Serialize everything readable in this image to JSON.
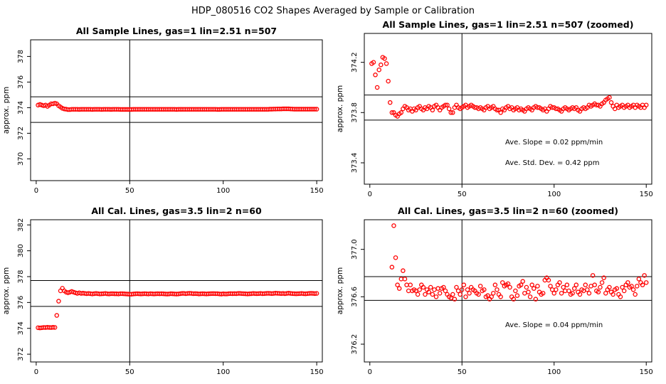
{
  "figure_title": "HDP_080516  CO2 Shapes Averaged by Sample or Calibration",
  "chart_data": [
    {
      "type": "scatter",
      "title": "All Sample Lines, gas=1 lin=2.51 n=507",
      "ylabel": "approx. ppm",
      "xlim": [
        -3,
        153
      ],
      "ylim": [
        368.3,
        379.3
      ],
      "xticks": [
        0,
        50,
        100,
        150
      ],
      "xtick_labels": [
        "0",
        "50",
        "100",
        "150"
      ],
      "yticks": [
        370,
        372,
        374,
        376,
        378
      ],
      "ytick_labels": [
        "370",
        "372",
        "374",
        "376",
        "378"
      ],
      "hlines": [
        374.85,
        372.85
      ],
      "vline": 50,
      "marker_color": "#ff0000",
      "grid": false,
      "x_start": 1,
      "values": [
        374.2,
        374.25,
        374.2,
        374.15,
        374.2,
        374.1,
        374.2,
        374.3,
        374.3,
        374.35,
        374.3,
        374.15,
        374.05,
        373.95,
        373.9,
        373.88,
        373.85,
        373.85,
        373.87,
        373.87,
        373.87,
        373.87,
        373.86,
        373.87,
        373.87,
        373.87,
        373.87,
        373.87,
        373.87,
        373.86,
        373.87,
        373.87,
        373.87,
        373.87,
        373.86,
        373.87,
        373.87,
        373.87,
        373.87,
        373.86,
        373.87,
        373.87,
        373.87,
        373.87,
        373.86,
        373.86,
        373.86,
        373.86,
        373.86,
        373.86,
        373.86,
        373.87,
        373.87,
        373.87,
        373.87,
        373.87,
        373.87,
        373.87,
        373.87,
        373.87,
        373.87,
        373.87,
        373.87,
        373.87,
        373.87,
        373.87,
        373.87,
        373.87,
        373.87,
        373.87,
        373.87,
        373.87,
        373.87,
        373.87,
        373.86,
        373.87,
        373.87,
        373.87,
        373.87,
        373.87,
        373.87,
        373.87,
        373.87,
        373.87,
        373.87,
        373.87,
        373.87,
        373.87,
        373.87,
        373.87,
        373.87,
        373.87,
        373.87,
        373.87,
        373.87,
        373.87,
        373.86,
        373.86,
        373.87,
        373.87,
        373.87,
        373.87,
        373.87,
        373.87,
        373.87,
        373.87,
        373.87,
        373.87,
        373.87,
        373.87,
        373.87,
        373.87,
        373.87,
        373.87,
        373.87,
        373.87,
        373.87,
        373.87,
        373.87,
        373.87,
        373.87,
        373.87,
        373.87,
        373.87,
        373.88,
        373.88,
        373.89,
        373.89,
        373.9,
        373.9,
        373.9,
        373.91,
        373.91,
        373.91,
        373.91,
        373.9,
        373.89,
        373.88,
        373.88,
        373.88,
        373.88,
        373.88,
        373.88,
        373.88,
        373.88,
        373.88,
        373.88,
        373.88,
        373.88,
        373.88
      ]
    },
    {
      "type": "scatter",
      "title": "All Sample Lines, gas=1 lin=2.51 n=507 (zoomed)",
      "ylabel": "approx. ppm",
      "xlim": [
        -3,
        153
      ],
      "ylim": [
        373.23,
        374.43
      ],
      "xticks": [
        0,
        50,
        100,
        150
      ],
      "xtick_labels": [
        "0",
        "50",
        "100",
        "150"
      ],
      "yticks": [
        373.4,
        373.8,
        374.2
      ],
      "ytick_labels": [
        "373.4",
        "373.8",
        "374.2"
      ],
      "hlines": [
        373.94,
        373.74
      ],
      "vline": 50,
      "marker_color": "#ff0000",
      "grid": false,
      "annotations": [
        "Ave. Slope =  0.02  ppm/min",
        "Ave. Std. Dev. =  0.42  ppm"
      ],
      "x_start": 1,
      "values": [
        374.19,
        374.2,
        374.1,
        374.0,
        374.14,
        374.18,
        374.24,
        374.23,
        374.19,
        374.05,
        373.88,
        373.8,
        373.8,
        373.78,
        373.77,
        373.79,
        373.8,
        373.83,
        373.85,
        373.84,
        373.82,
        373.83,
        373.81,
        373.83,
        373.82,
        373.84,
        373.85,
        373.83,
        373.82,
        373.84,
        373.83,
        373.85,
        373.84,
        373.82,
        373.85,
        373.86,
        373.84,
        373.82,
        373.84,
        373.85,
        373.86,
        373.86,
        373.83,
        373.8,
        373.8,
        373.84,
        373.86,
        373.84,
        373.83,
        373.84,
        373.85,
        373.86,
        373.84,
        373.85,
        373.86,
        373.85,
        373.84,
        373.84,
        373.83,
        373.84,
        373.83,
        373.82,
        373.84,
        373.85,
        373.83,
        373.84,
        373.85,
        373.83,
        373.82,
        373.82,
        373.8,
        373.83,
        373.82,
        373.84,
        373.85,
        373.83,
        373.84,
        373.82,
        373.83,
        373.84,
        373.82,
        373.83,
        373.82,
        373.81,
        373.83,
        373.84,
        373.83,
        373.82,
        373.84,
        373.85,
        373.84,
        373.84,
        373.83,
        373.82,
        373.83,
        373.81,
        373.83,
        373.85,
        373.84,
        373.84,
        373.83,
        373.83,
        373.82,
        373.81,
        373.83,
        373.84,
        373.83,
        373.82,
        373.83,
        373.84,
        373.83,
        373.84,
        373.82,
        373.81,
        373.83,
        373.84,
        373.83,
        373.84,
        373.86,
        373.85,
        373.86,
        373.87,
        373.86,
        373.86,
        373.85,
        373.87,
        373.88,
        373.9,
        373.91,
        373.92,
        373.88,
        373.85,
        373.83,
        373.86,
        373.84,
        373.85,
        373.86,
        373.84,
        373.85,
        373.86,
        373.84,
        373.85,
        373.86,
        373.84,
        373.86,
        373.85,
        373.84,
        373.86,
        373.84,
        373.86
      ]
    },
    {
      "type": "scatter",
      "title": "All Cal. Lines, gas=3.5 lin=2 n=60",
      "ylabel": "approx. ppm",
      "xlim": [
        -3,
        153
      ],
      "ylim": [
        371.4,
        382.4
      ],
      "xticks": [
        0,
        50,
        100,
        150
      ],
      "xtick_labels": [
        "0",
        "50",
        "100",
        "150"
      ],
      "yticks": [
        372,
        374,
        376,
        378,
        380,
        382
      ],
      "ytick_labels": [
        "372",
        "374",
        "376",
        "378",
        "380",
        "382"
      ],
      "hlines": [
        377.7,
        375.7
      ],
      "vline": 50,
      "marker_color": "#ff0000",
      "grid": false,
      "x_start": 1,
      "values": [
        374.05,
        374.03,
        374.05,
        374.07,
        374.06,
        374.08,
        374.07,
        374.06,
        374.08,
        374.07,
        375.0,
        376.1,
        376.9,
        377.1,
        376.9,
        376.8,
        376.75,
        376.8,
        376.85,
        376.8,
        376.75,
        376.7,
        376.75,
        376.7,
        376.72,
        376.7,
        376.68,
        376.7,
        376.68,
        376.66,
        376.68,
        376.7,
        376.68,
        376.66,
        376.67,
        376.68,
        376.7,
        376.67,
        376.66,
        376.68,
        376.68,
        376.67,
        376.67,
        376.66,
        376.68,
        376.68,
        376.67,
        376.66,
        376.65,
        376.64,
        376.64,
        376.66,
        376.67,
        376.68,
        376.67,
        376.66,
        376.67,
        376.68,
        376.67,
        376.66,
        376.68,
        376.67,
        376.66,
        376.67,
        376.68,
        376.67,
        376.68,
        376.67,
        376.66,
        376.65,
        376.66,
        376.68,
        376.67,
        376.66,
        376.65,
        376.66,
        376.68,
        376.7,
        376.7,
        376.68,
        376.7,
        376.71,
        376.7,
        376.68,
        376.69,
        376.68,
        376.66,
        376.67,
        376.68,
        376.67,
        376.66,
        376.67,
        376.68,
        376.69,
        376.69,
        376.68,
        376.68,
        376.66,
        376.65,
        376.67,
        376.66,
        376.66,
        376.68,
        376.69,
        376.68,
        376.69,
        376.68,
        376.7,
        376.7,
        376.69,
        376.68,
        376.67,
        376.66,
        376.67,
        376.68,
        376.7,
        376.69,
        376.68,
        376.69,
        376.7,
        376.68,
        376.69,
        376.7,
        376.71,
        376.7,
        376.69,
        376.7,
        376.72,
        376.71,
        376.7,
        376.69,
        376.7,
        376.68,
        376.7,
        376.72,
        376.7,
        376.69,
        376.68,
        376.67,
        376.68,
        376.69,
        376.7,
        376.68,
        376.67,
        376.69,
        376.7,
        376.71,
        376.7,
        376.69,
        376.7
      ]
    },
    {
      "type": "scatter",
      "title": "All Cal. Lines, gas=3.5 lin=2 n=60 (zoomed)",
      "ylabel": "approx. ppm",
      "xlim": [
        -3,
        153
      ],
      "ylim": [
        376.05,
        377.25
      ],
      "xticks": [
        0,
        50,
        100,
        150
      ],
      "xtick_labels": [
        "0",
        "50",
        "100",
        "150"
      ],
      "yticks": [
        376.2,
        376.6,
        377.0
      ],
      "ytick_labels": [
        "376.2",
        "376.6",
        "377.0"
      ],
      "hlines": [
        376.77,
        376.57
      ],
      "vline": 50,
      "marker_color": "#ff0000",
      "grid": false,
      "annotations": [
        "Ave. Slope =  0.04  ppm/min"
      ],
      "x_start": 12,
      "values": [
        376.85,
        377.2,
        376.93,
        376.7,
        376.67,
        376.75,
        376.82,
        376.75,
        376.7,
        376.65,
        376.7,
        376.65,
        376.66,
        376.65,
        376.62,
        376.66,
        376.7,
        376.68,
        376.62,
        376.66,
        376.64,
        376.68,
        376.62,
        376.66,
        376.6,
        376.67,
        376.63,
        376.67,
        376.68,
        376.65,
        376.62,
        376.6,
        376.59,
        376.62,
        376.58,
        376.68,
        376.65,
        376.62,
        376.66,
        376.7,
        376.6,
        376.66,
        376.63,
        376.68,
        376.66,
        376.65,
        376.63,
        376.62,
        376.69,
        376.65,
        376.66,
        376.6,
        376.61,
        376.58,
        376.6,
        376.63,
        376.7,
        376.66,
        376.62,
        376.6,
        376.72,
        376.69,
        376.7,
        376.71,
        376.68,
        376.6,
        376.58,
        376.65,
        376.61,
        376.69,
        376.7,
        376.73,
        376.63,
        376.68,
        376.64,
        376.6,
        376.7,
        376.67,
        376.58,
        376.69,
        376.64,
        376.62,
        376.63,
        376.74,
        376.76,
        376.74,
        376.69,
        376.66,
        376.63,
        376.66,
        376.7,
        376.72,
        376.63,
        376.68,
        376.65,
        376.7,
        376.65,
        376.62,
        376.63,
        376.67,
        376.7,
        376.64,
        376.62,
        376.66,
        376.65,
        376.7,
        376.66,
        376.63,
        376.69,
        376.78,
        376.7,
        376.65,
        376.64,
        376.68,
        376.72,
        376.76,
        376.63,
        376.66,
        376.68,
        376.64,
        376.62,
        376.66,
        376.67,
        376.62,
        376.6,
        376.68,
        376.65,
        376.7,
        376.72,
        376.68,
        376.69,
        376.66,
        376.62,
        376.69,
        376.75,
        376.72,
        376.7,
        376.78,
        376.72
      ]
    }
  ]
}
